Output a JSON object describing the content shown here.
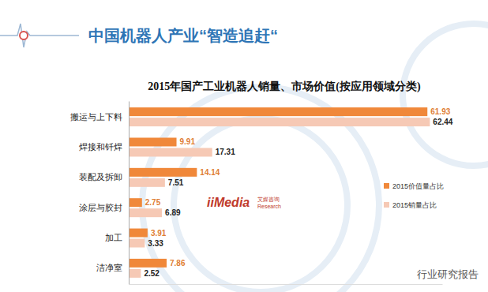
{
  "chart_data": {
    "type": "bar",
    "orientation": "horizontal",
    "title": "2015年国产工业机器人销量、市场价值(按应用领域分类)",
    "annotations": [
      "中国机器人产业“智造追赶“",
      "iiMedia",
      "艾媒咨询",
      "Research",
      "行业研究报告"
    ],
    "categories": [
      "搬运与上下料",
      "焊接和钎焊",
      "装配及拆卸",
      "涂层与胶封",
      "加工",
      "洁净室"
    ],
    "series": [
      {
        "name": "2015价值量占比",
        "color": "#f0883a",
        "values": [
          61.93,
          9.91,
          14.14,
          2.75,
          3.91,
          7.86
        ]
      },
      {
        "name": "2015销量占比",
        "color": "#f6c9b5",
        "values": [
          62.44,
          17.31,
          7.51,
          6.89,
          3.33,
          2.52
        ]
      }
    ],
    "xlim": [
      0,
      65
    ],
    "xticks": [],
    "tick_labels": "y",
    "data_labels": true,
    "legend": "right",
    "grid": false
  }
}
